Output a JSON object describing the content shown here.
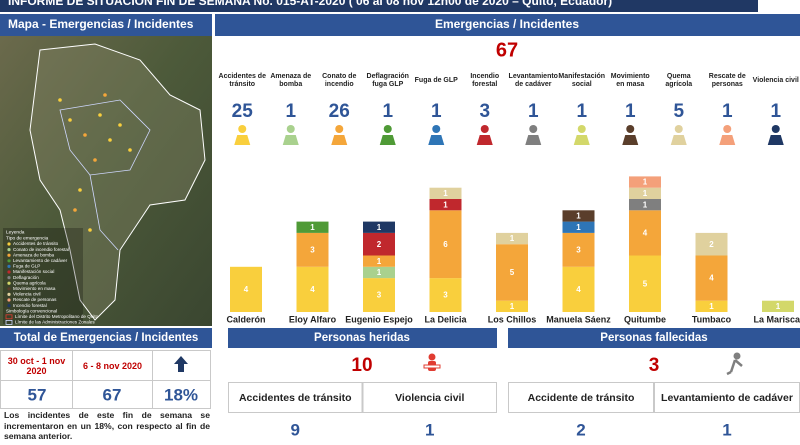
{
  "header": {
    "title": "INFORME DE SITUACIÓN FIN DE SEMANA No. 015-AT-2020 ( 06 al 08 nov 12h00 de 2020 – Quito, Ecuador)"
  },
  "map": {
    "title": "Mapa - Emergencias / Incidentes",
    "legend_title": "Leyenda",
    "legend_subtitle": "Tipo de emergencia",
    "legend_items": [
      "Accidentes de tránsito",
      "Conato de incendio forestal",
      "Amenaza de bomba",
      "Levantamiento de cadáver",
      "Fuga de GLP",
      "Manifestación social",
      "Deflagración",
      "Quema agrícola",
      "Movimiento en masa",
      "Violencia civil",
      "Rescate de personas",
      "Incendio forestal"
    ],
    "conventional_title": "Simbología convencional",
    "conventional_items": [
      "Límite del Distrito Metropolitano de Quito",
      "Límite de las Administraciones Zonales"
    ]
  },
  "summary": {
    "title": "Total de Emergencias / Incidentes",
    "previous_period": "30 oct - 1 nov 2020",
    "current_period": "6 - 8 nov 2020",
    "previous": 57,
    "current": 67,
    "change": "18%",
    "note": "Los incidentes de este fin de semana se incrementaron en un 18%, con respecto al fin de semana anterior."
  },
  "chart_data": {
    "type": "stacked_bar",
    "title": "Emergencias / Incidentes",
    "total": 67,
    "categories": [
      "Calderón",
      "Eloy Alfaro",
      "Eugenio Espejo",
      "La Delicia",
      "Los Chillos",
      "Manuela Sáenz",
      "Quitumbe",
      "Tumbaco",
      "La Mariscal"
    ],
    "series": [
      {
        "name": "Accidentes de tránsito",
        "total": 25,
        "color": "#f9cf3d",
        "values": [
          4,
          4,
          3,
          3,
          1,
          4,
          5,
          1,
          null
        ]
      },
      {
        "name": "Amenaza de bomba",
        "total": 1,
        "color": "#a9d18e",
        "values": [
          null,
          null,
          1,
          null,
          null,
          null,
          null,
          null,
          null
        ]
      },
      {
        "name": "Conato de incendio",
        "total": 26,
        "color": "#f4a63a",
        "values": [
          null,
          3,
          1,
          6,
          5,
          3,
          4,
          4,
          null
        ]
      },
      {
        "name": "Deflagración fuga GLP",
        "total": 1,
        "color": "#4f9a36",
        "values": [
          null,
          1,
          null,
          null,
          null,
          null,
          null,
          null,
          null
        ]
      },
      {
        "name": "Fuga de GLP",
        "total": 1,
        "color": "#2e75b6",
        "values": [
          null,
          null,
          null,
          null,
          null,
          1,
          null,
          null,
          null
        ]
      },
      {
        "name": "Incendio forestal",
        "total": 3,
        "color": "#c0282d",
        "values": [
          null,
          null,
          2,
          1,
          null,
          null,
          null,
          null,
          null
        ]
      },
      {
        "name": "Levantamiento de cadáver",
        "total": 1,
        "color": "#7f7f7f",
        "values": [
          null,
          null,
          null,
          null,
          null,
          null,
          1,
          null,
          null
        ]
      },
      {
        "name": "Manifestación social",
        "total": 1,
        "color": "#d3d86a",
        "values": [
          null,
          null,
          null,
          null,
          null,
          null,
          null,
          null,
          1
        ]
      },
      {
        "name": "Movimiento en masa",
        "total": 1,
        "color": "#5a3e2b",
        "values": [
          null,
          null,
          null,
          null,
          null,
          1,
          null,
          null,
          null
        ]
      },
      {
        "name": "Quema agrícola",
        "total": 5,
        "color": "#e0d19e",
        "values": [
          null,
          null,
          null,
          1,
          1,
          null,
          1,
          2,
          null
        ]
      },
      {
        "name": "Rescate de personas",
        "total": 1,
        "color": "#f4a07a",
        "values": [
          null,
          null,
          null,
          null,
          null,
          null,
          1,
          null,
          null
        ]
      },
      {
        "name": "Violencia civil",
        "total": 1,
        "color": "#1f3864",
        "values": [
          null,
          null,
          1,
          null,
          null,
          null,
          null,
          null,
          null
        ]
      }
    ]
  },
  "injured": {
    "title": "Personas heridas",
    "total": 10,
    "rows": [
      {
        "label": "Accidentes de tránsito",
        "value": 9
      },
      {
        "label": "Violencia civil",
        "value": 1
      }
    ]
  },
  "deceased": {
    "title": "Personas fallecidas",
    "total": 3,
    "rows": [
      {
        "label": "Accidente de tránsito",
        "value": 2
      },
      {
        "label": "Levantamiento de cadáver",
        "value": 1
      }
    ]
  }
}
